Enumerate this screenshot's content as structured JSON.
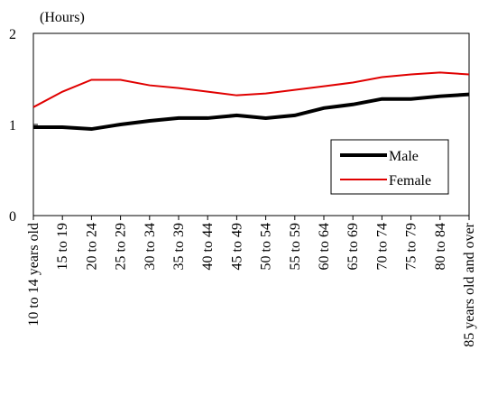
{
  "chart_data": {
    "type": "line",
    "y_label": "(Hours)",
    "categories": [
      "10 to 14 years old",
      "15 to 19",
      "20 to 24",
      "25 to 29",
      "30 to 34",
      "35 to 39",
      "40 to 44",
      "45 to 49",
      "50 to 54",
      "55 to 59",
      "60 to 64",
      "65 to 69",
      "70 to 74",
      "75 to 79",
      "80 to 84",
      "85 years old and over"
    ],
    "series": [
      {
        "name": "Male",
        "color": "#000000",
        "width": 4,
        "values": [
          0.97,
          0.97,
          0.95,
          1.0,
          1.04,
          1.07,
          1.07,
          1.1,
          1.07,
          1.1,
          1.18,
          1.22,
          1.28,
          1.28,
          1.31,
          1.33
        ]
      },
      {
        "name": "Female",
        "color": "#e00000",
        "width": 2,
        "values": [
          1.19,
          1.36,
          1.49,
          1.49,
          1.43,
          1.4,
          1.36,
          1.32,
          1.34,
          1.38,
          1.42,
          1.46,
          1.52,
          1.55,
          1.57,
          1.55
        ]
      }
    ],
    "ylim": [
      0,
      2
    ],
    "yticks": [
      0,
      1,
      2
    ],
    "grid": false,
    "legend": "lower right"
  }
}
